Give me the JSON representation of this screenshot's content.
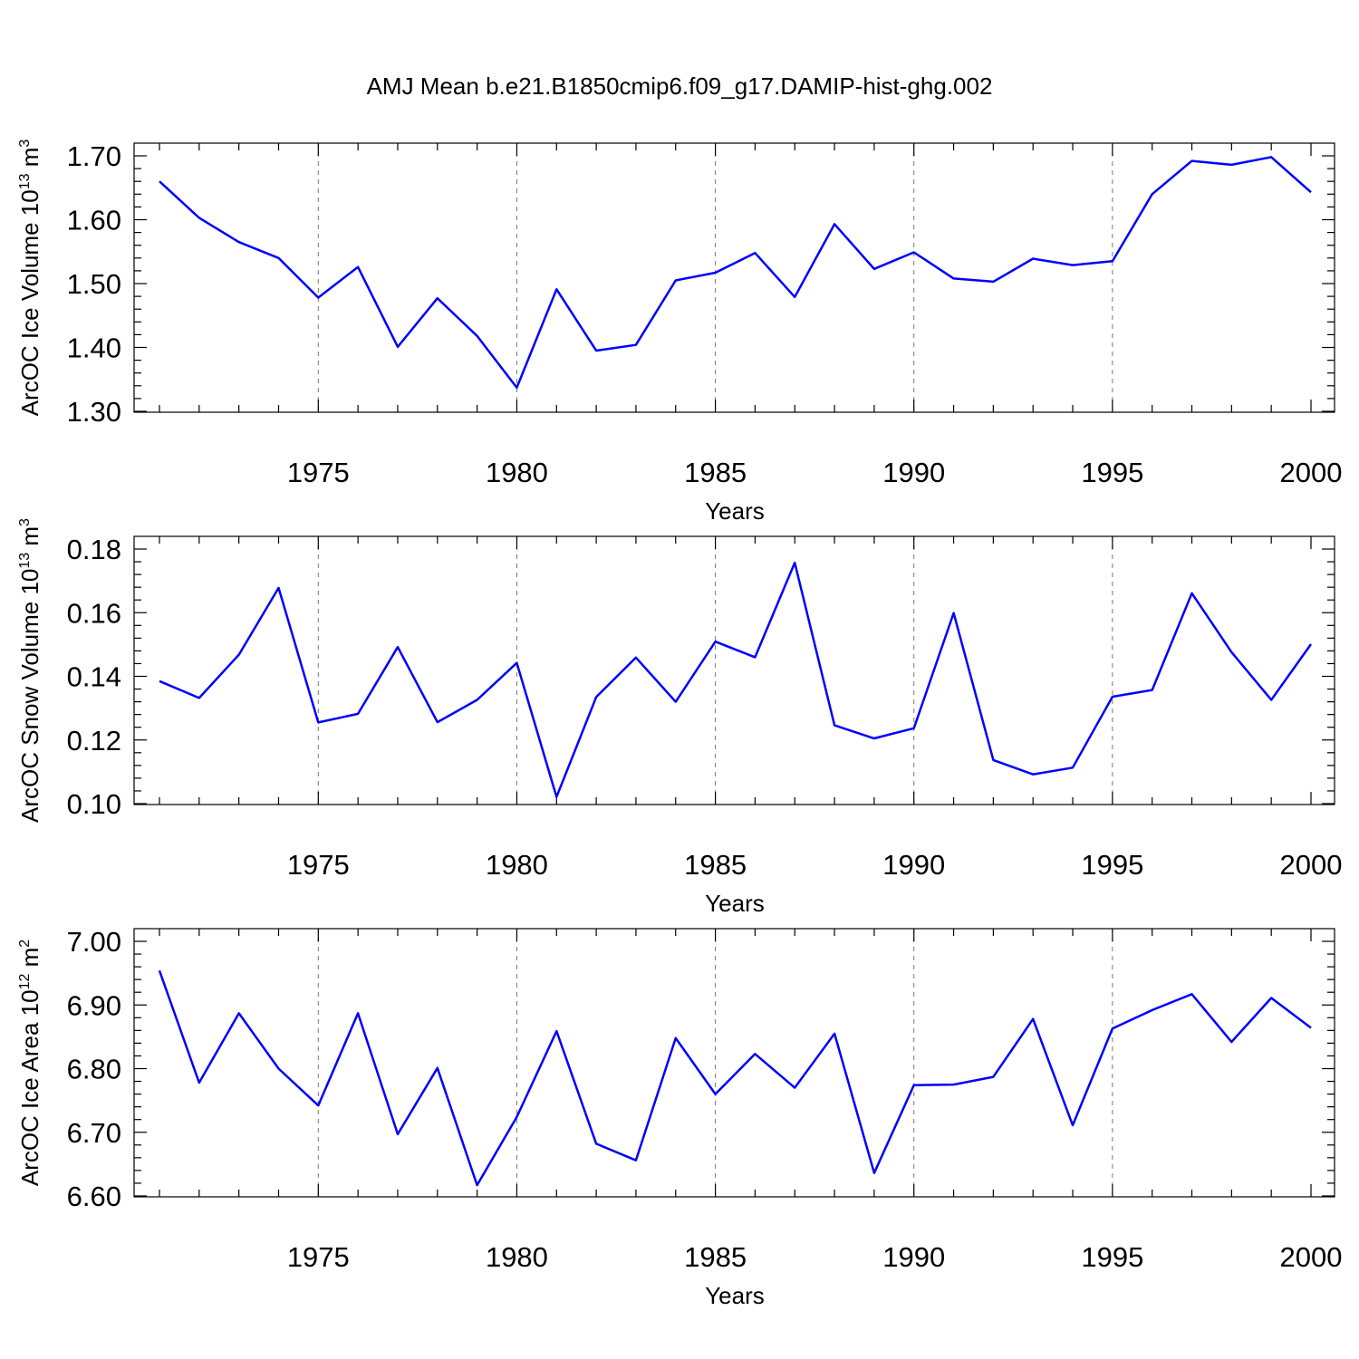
{
  "chart_data": {
    "type": "line",
    "title": "AMJ Mean b.e21.B1850cmip6.f09_g17.DAMIP-hist-ghg.002",
    "colors": {
      "line": "#0000ff",
      "grid": "#777777",
      "axis": "#000000"
    },
    "years": [
      1971,
      1972,
      1973,
      1974,
      1975,
      1976,
      1977,
      1978,
      1979,
      1980,
      1981,
      1982,
      1983,
      1984,
      1985,
      1986,
      1987,
      1988,
      1989,
      1990,
      1991,
      1992,
      1993,
      1994,
      1995,
      1996,
      1997,
      1998,
      1999,
      2000
    ],
    "xlim": [
      1971,
      2000
    ],
    "xticks": [
      1975,
      1980,
      1985,
      1990,
      1995,
      2000
    ],
    "xtick_labels": [
      "1975",
      "1980",
      "1985",
      "1990",
      "1995",
      "2000"
    ],
    "panels": [
      {
        "name": "ice-volume",
        "ylabel_main": "ArcOC Ice Volume 10",
        "ylabel_exp": "13",
        "ylabel_unit": " m",
        "ylabel_unit_exp": "3",
        "xlabel": "Years",
        "ylim": [
          1.3,
          1.7
        ],
        "yticks": [
          1.3,
          1.4,
          1.5,
          1.6,
          1.7
        ],
        "ytick_labels": [
          "1.30",
          "1.40",
          "1.50",
          "1.60",
          "1.70"
        ],
        "values": [
          1.66,
          1.603,
          1.565,
          1.54,
          1.478,
          1.526,
          1.401,
          1.477,
          1.418,
          1.337,
          1.491,
          1.395,
          1.404,
          1.505,
          1.517,
          1.548,
          1.479,
          1.593,
          1.523,
          1.549,
          1.508,
          1.503,
          1.539,
          1.529,
          1.535,
          1.64,
          1.692,
          1.686,
          1.698,
          1.643
        ]
      },
      {
        "name": "snow-volume",
        "ylabel_main": "ArcOC Snow Volume 10",
        "ylabel_exp": "13",
        "ylabel_unit": " m",
        "ylabel_unit_exp": "3",
        "xlabel": "Years",
        "ylim": [
          0.1,
          0.18
        ],
        "yticks": [
          0.1,
          0.12,
          0.14,
          0.16,
          0.18
        ],
        "ytick_labels": [
          "0.10",
          "0.12",
          "0.14",
          "0.16",
          "0.18"
        ],
        "values": [
          0.1385,
          0.1332,
          0.1468,
          0.1678,
          0.1255,
          0.1282,
          0.1492,
          0.1256,
          0.1326,
          0.1442,
          0.1021,
          0.1335,
          0.1459,
          0.132,
          0.1509,
          0.146,
          0.1757,
          0.1246,
          0.1205,
          0.1237,
          0.1599,
          0.1137,
          0.1092,
          0.1113,
          0.1336,
          0.1357,
          0.1661,
          0.1476,
          0.1326,
          0.1501
        ]
      },
      {
        "name": "ice-area",
        "ylabel_main": "ArcOC Ice Area 10",
        "ylabel_exp": "12",
        "ylabel_unit": " m",
        "ylabel_unit_exp": "2",
        "xlabel": "Years",
        "ylim": [
          6.6,
          7.0
        ],
        "yticks": [
          6.6,
          6.7,
          6.8,
          6.9,
          7.0
        ],
        "ytick_labels": [
          "6.60",
          "6.70",
          "6.80",
          "6.90",
          "7.00"
        ],
        "values": [
          6.954,
          6.778,
          6.887,
          6.8,
          6.742,
          6.887,
          6.697,
          6.801,
          6.617,
          6.724,
          6.859,
          6.682,
          6.656,
          6.848,
          6.76,
          6.823,
          6.77,
          6.855,
          6.636,
          6.774,
          6.775,
          6.787,
          6.878,
          6.711,
          6.863,
          6.892,
          6.917,
          6.842,
          6.911,
          6.864
        ]
      }
    ]
  }
}
